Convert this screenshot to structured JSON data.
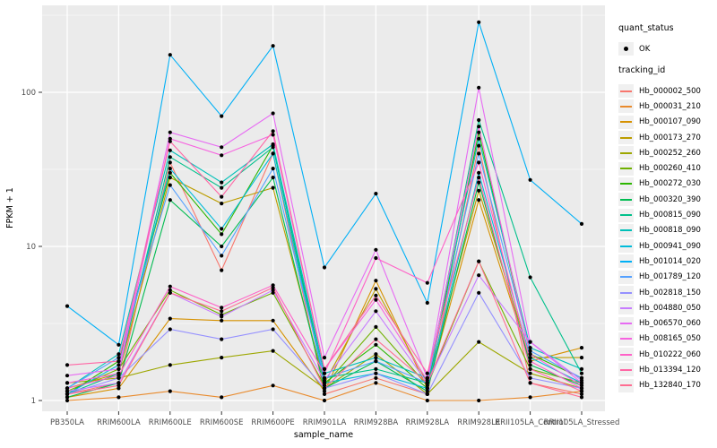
{
  "figure": {
    "background": "#FFFFFF",
    "panel_background": "#EBEBEB",
    "gridline_color": "#FFFFFF",
    "axis_text_color": "#4D4D4D",
    "point_color": "#000000"
  },
  "chart_data": {
    "type": "line",
    "title": "",
    "xlabel": "sample_name",
    "ylabel": "FPKM + 1",
    "y_scale": "log10",
    "grid": "on",
    "legend_position": "right",
    "y_ticks": [
      1,
      10,
      100
    ],
    "y_tick_labels": [
      "1",
      "10",
      "100"
    ],
    "y_minor_ticks": [
      3.1623,
      31.623,
      316.23
    ],
    "categories": [
      "PB350LA",
      "RRIM600LA",
      "RRIM600LE",
      "RRIM600SE",
      "RRIM600PE",
      "RRIM901LA",
      "RRIM928BA",
      "RRIM928LA",
      "RRIM928LE",
      "RRII105LA_Control",
      "RRII105LA_Stressed"
    ],
    "series": [
      {
        "tracking_id": "Hb_000002_500",
        "color": "#F8766D",
        "values": [
          1.1,
          1.3,
          35,
          7,
          40,
          1.1,
          1.4,
          1.1,
          45,
          1.3,
          1.1
        ]
      },
      {
        "tracking_id": "Hb_000031_210",
        "color": "#E98A2C",
        "values": [
          1.0,
          1.05,
          1.15,
          1.05,
          1.25,
          1.0,
          1.3,
          1.0,
          1.0,
          1.05,
          1.15
        ]
      },
      {
        "tracking_id": "Hb_000107_090",
        "color": "#D69100",
        "values": [
          1.05,
          1.2,
          3.4,
          3.3,
          3.3,
          1.15,
          6.0,
          1.2,
          20,
          1.8,
          2.2
        ]
      },
      {
        "tracking_id": "Hb_000173_270",
        "color": "#BC9D00",
        "values": [
          1.2,
          1.5,
          28,
          19,
          24,
          1.3,
          5.3,
          1.3,
          23,
          1.9,
          1.9
        ]
      },
      {
        "tracking_id": "Hb_000252_260",
        "color": "#9DA700",
        "values": [
          1.3,
          1.4,
          1.7,
          1.9,
          2.1,
          1.2,
          2.0,
          1.1,
          2.4,
          1.5,
          1.2
        ]
      },
      {
        "tracking_id": "Hb_000260_410",
        "color": "#6FB000",
        "values": [
          1.15,
          1.6,
          5.2,
          3.6,
          5.0,
          1.25,
          3.0,
          1.25,
          8.0,
          1.6,
          1.3
        ]
      },
      {
        "tracking_id": "Hb_000272_030",
        "color": "#2CB600",
        "values": [
          1.1,
          1.8,
          30,
          12,
          45,
          1.3,
          2.3,
          1.2,
          55,
          2.0,
          1.4
        ]
      },
      {
        "tracking_id": "Hb_000320_390",
        "color": "#00BC51",
        "values": [
          1.05,
          1.3,
          20,
          10,
          28,
          1.2,
          1.8,
          1.15,
          26,
          1.7,
          1.25
        ]
      },
      {
        "tracking_id": "Hb_000815_090",
        "color": "#00C08B",
        "values": [
          1.1,
          1.5,
          38,
          24,
          44,
          1.4,
          1.6,
          1.3,
          66,
          6.3,
          1.5
        ]
      },
      {
        "tracking_id": "Hb_000818_090",
        "color": "#00C0B8",
        "values": [
          1.2,
          2.0,
          42,
          26,
          46,
          1.5,
          1.9,
          1.4,
          50,
          2.2,
          1.6
        ]
      },
      {
        "tracking_id": "Hb_000941_090",
        "color": "#00BBDA",
        "values": [
          1.1,
          1.7,
          32,
          13,
          40,
          1.3,
          1.5,
          1.2,
          30,
          1.9,
          1.3
        ]
      },
      {
        "tracking_id": "Hb_001014_020",
        "color": "#00B0F6",
        "values": [
          4.1,
          2.3,
          175,
          70,
          200,
          7.3,
          22,
          4.3,
          285,
          27,
          14
        ]
      },
      {
        "tracking_id": "Hb_001789_120",
        "color": "#55A1FF",
        "values": [
          1.2,
          1.9,
          25,
          8.7,
          32,
          1.4,
          1.8,
          1.3,
          40,
          2.1,
          1.4
        ]
      },
      {
        "tracking_id": "Hb_002818_150",
        "color": "#9590FF",
        "values": [
          1.1,
          1.4,
          2.9,
          2.5,
          2.9,
          1.2,
          1.5,
          1.1,
          5.0,
          1.4,
          1.2
        ]
      },
      {
        "tracking_id": "Hb_004880_050",
        "color": "#C77CFF",
        "values": [
          1.15,
          1.3,
          5.0,
          3.5,
          5.2,
          1.35,
          3.8,
          1.3,
          6.5,
          2.4,
          1.35
        ]
      },
      {
        "tracking_id": "Hb_006570_060",
        "color": "#E76BF3",
        "values": [
          1.45,
          1.6,
          55,
          44,
          73,
          1.9,
          9.5,
          1.4,
          107,
          2.4,
          1.3
        ]
      },
      {
        "tracking_id": "Hb_008165_050",
        "color": "#F763E0",
        "values": [
          1.3,
          1.5,
          50,
          39,
          53,
          1.6,
          4.5,
          1.35,
          60,
          2.0,
          1.25
        ]
      },
      {
        "tracking_id": "Hb_010222_060",
        "color": "#FF61C7",
        "values": [
          1.2,
          1.45,
          5.5,
          4.0,
          5.6,
          1.5,
          8.4,
          5.8,
          35,
          1.8,
          1.2
        ]
      },
      {
        "tracking_id": "Hb_013394_120",
        "color": "#FF67A5",
        "values": [
          1.7,
          1.8,
          48,
          21,
          56,
          1.6,
          4.8,
          1.5,
          28,
          1.6,
          1.15
        ]
      },
      {
        "tracking_id": "Hb_132840_170",
        "color": "#FF6C91",
        "values": [
          1.1,
          1.25,
          5.0,
          3.8,
          5.4,
          1.2,
          2.5,
          1.3,
          8.0,
          1.3,
          1.05
        ]
      }
    ],
    "legend": {
      "quant_status": {
        "title": "quant_status",
        "items": [
          {
            "label": "OK",
            "marker": "point",
            "color": "#000000"
          }
        ]
      },
      "tracking": {
        "title": "tracking_id"
      }
    }
  }
}
